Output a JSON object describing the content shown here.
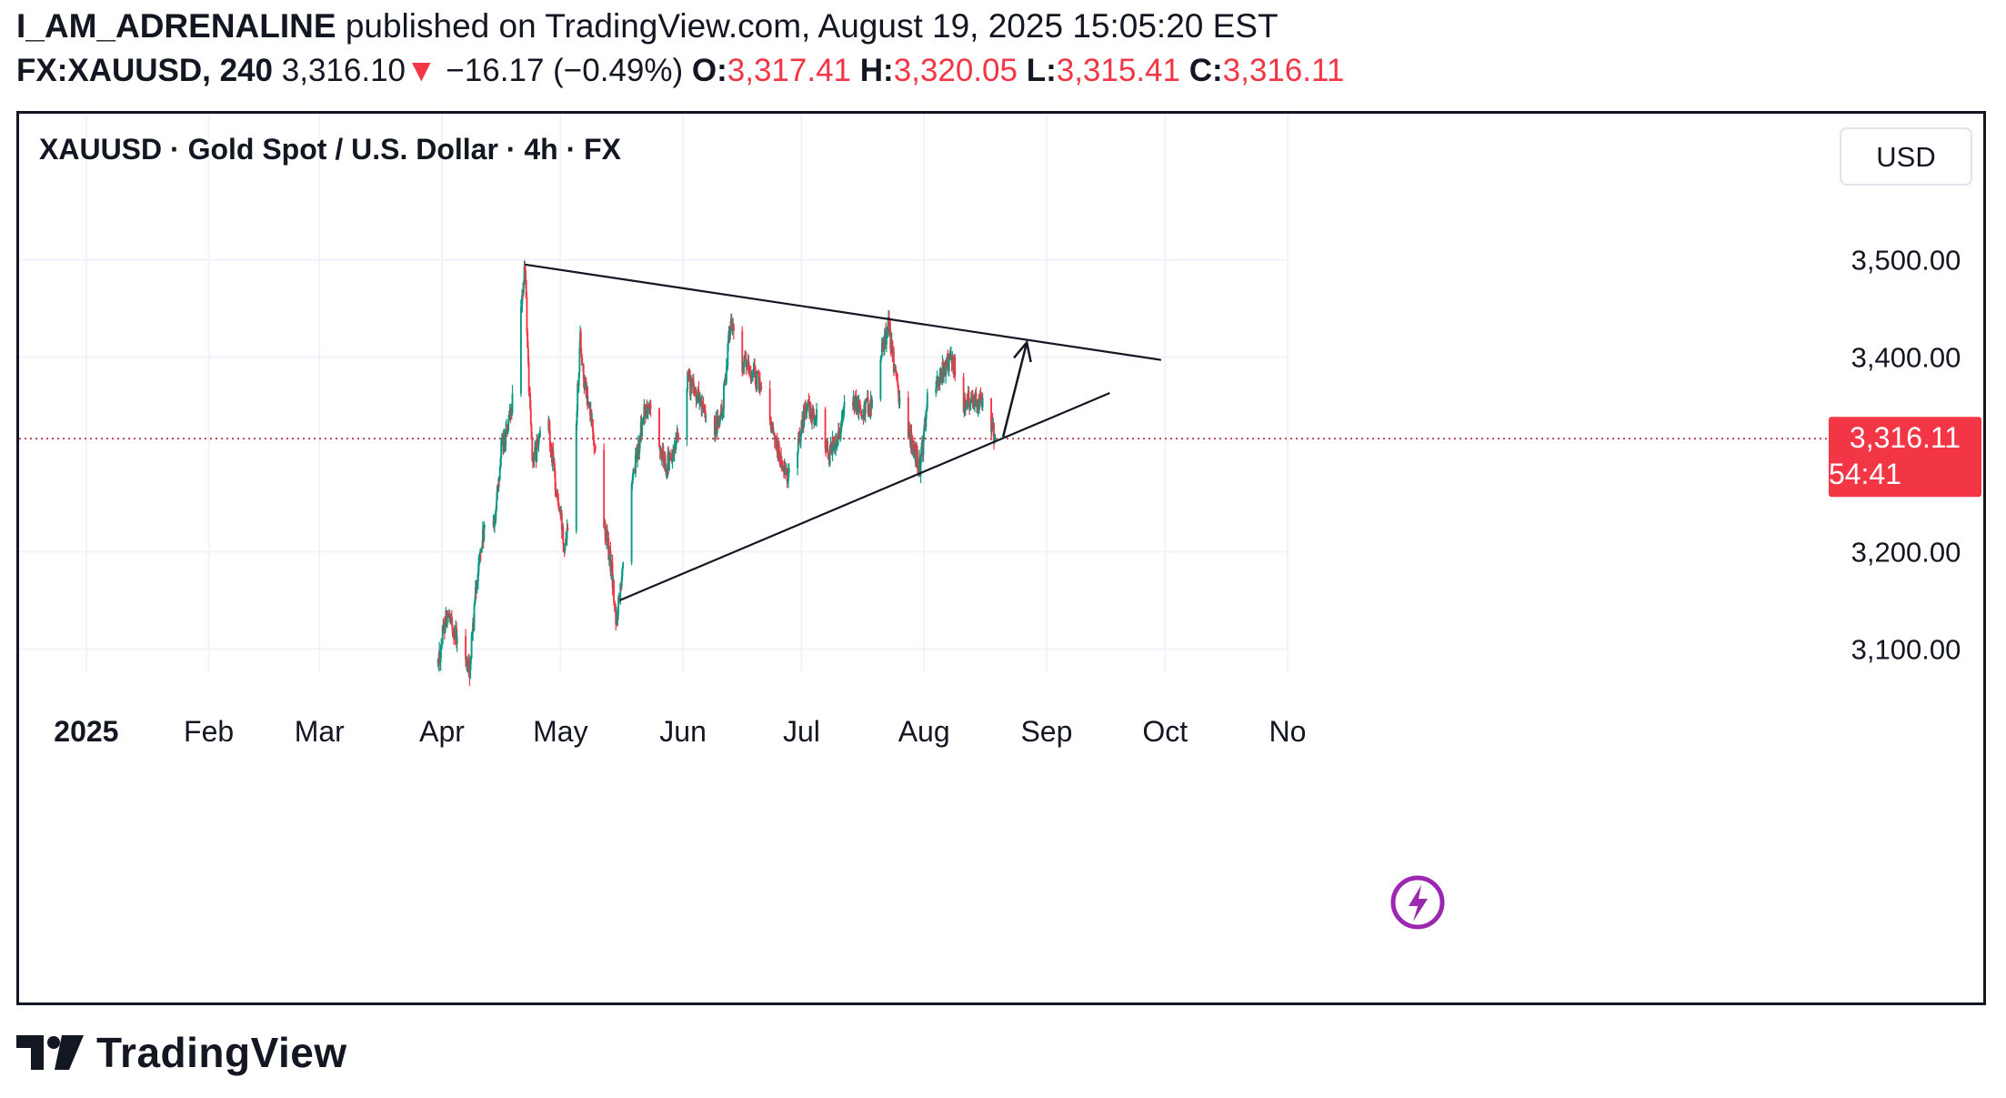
{
  "header": {
    "user": "I_AM_ADRENALINE",
    "published": "published on TradingView.com, August 19, 2025 15:05:20 EST",
    "symbol": "FX:XAUUSD, 240",
    "last": "3,316.10",
    "arrow": "▼",
    "change": "−16.17 (−0.49%)",
    "o_label": "O:",
    "o_value": "3,317.41",
    "h_label": "H:",
    "h_value": "3,320.05",
    "l_label": "L:",
    "l_value": "3,315.41",
    "c_label": "C:",
    "c_value": "3,316.11"
  },
  "brand": {
    "name": "TradingView"
  },
  "chart_data": {
    "type": "candlestick",
    "title": "XAUUSD · Gold Spot / U.S. Dollar · 4h · FX",
    "currency": "USD",
    "y_ticks": [
      "3,500.00",
      "3,400.00",
      "3,200.00",
      "3,100.00"
    ],
    "y_tick_values": [
      3500,
      3400,
      3200,
      3100
    ],
    "ylim": [
      3077,
      3650
    ],
    "x_ticks": [
      "2025",
      "Feb",
      "Mar",
      "Apr",
      "May",
      "Jun",
      "Jul",
      "Aug",
      "Sep",
      "Oct",
      "No"
    ],
    "x_tick_dates": [
      "2025-01-01",
      "2025-02-01",
      "2025-03-01",
      "2025-04-01",
      "2025-05-01",
      "2025-06-01",
      "2025-07-01",
      "2025-08-01",
      "2025-09-01",
      "2025-10-01",
      "2025-11-01"
    ],
    "xlim": [
      "2024-12-15",
      "2025-11-01"
    ],
    "grid": true,
    "last_price_label": "3,316.11",
    "countdown": "54:41",
    "price_path": [
      {
        "date": "2025-03-31",
        "price": 3085
      },
      {
        "date": "2025-04-02",
        "price": 3135
      },
      {
        "date": "2025-04-04",
        "price": 3120
      },
      {
        "date": "2025-04-06",
        "price": 3092
      },
      {
        "date": "2025-04-08",
        "price": 3078
      },
      {
        "date": "2025-04-10",
        "price": 3180
      },
      {
        "date": "2025-04-12",
        "price": 3230
      },
      {
        "date": "2025-04-14",
        "price": 3220
      },
      {
        "date": "2025-04-16",
        "price": 3305
      },
      {
        "date": "2025-04-18",
        "price": 3330
      },
      {
        "date": "2025-04-20",
        "price": 3390
      },
      {
        "date": "2025-04-22",
        "price": 3495
      },
      {
        "date": "2025-04-23",
        "price": 3370
      },
      {
        "date": "2025-04-24",
        "price": 3290
      },
      {
        "date": "2025-04-26",
        "price": 3320
      },
      {
        "date": "2025-04-28",
        "price": 3330
      },
      {
        "date": "2025-04-30",
        "price": 3260
      },
      {
        "date": "2025-05-02",
        "price": 3210
      },
      {
        "date": "2025-05-04",
        "price": 3260
      },
      {
        "date": "2025-05-06",
        "price": 3420
      },
      {
        "date": "2025-05-07",
        "price": 3375
      },
      {
        "date": "2025-05-09",
        "price": 3330
      },
      {
        "date": "2025-05-12",
        "price": 3230
      },
      {
        "date": "2025-05-14",
        "price": 3180
      },
      {
        "date": "2025-05-15",
        "price": 3125
      },
      {
        "date": "2025-05-17",
        "price": 3200
      },
      {
        "date": "2025-05-20",
        "price": 3290
      },
      {
        "date": "2025-05-22",
        "price": 3340
      },
      {
        "date": "2025-05-24",
        "price": 3350
      },
      {
        "date": "2025-05-26",
        "price": 3305
      },
      {
        "date": "2025-05-28",
        "price": 3290
      },
      {
        "date": "2025-05-30",
        "price": 3300
      },
      {
        "date": "2025-06-02",
        "price": 3375
      },
      {
        "date": "2025-06-05",
        "price": 3360
      },
      {
        "date": "2025-06-08",
        "price": 3310
      },
      {
        "date": "2025-06-11",
        "price": 3345
      },
      {
        "date": "2025-06-13",
        "price": 3440
      },
      {
        "date": "2025-06-15",
        "price": 3400
      },
      {
        "date": "2025-06-18",
        "price": 3385
      },
      {
        "date": "2025-06-21",
        "price": 3370
      },
      {
        "date": "2025-06-24",
        "price": 3320
      },
      {
        "date": "2025-06-27",
        "price": 3275
      },
      {
        "date": "2025-06-29",
        "price": 3290
      },
      {
        "date": "2025-07-02",
        "price": 3350
      },
      {
        "date": "2025-07-05",
        "price": 3335
      },
      {
        "date": "2025-07-08",
        "price": 3300
      },
      {
        "date": "2025-07-10",
        "price": 3320
      },
      {
        "date": "2025-07-13",
        "price": 3360
      },
      {
        "date": "2025-07-16",
        "price": 3345
      },
      {
        "date": "2025-07-19",
        "price": 3355
      },
      {
        "date": "2025-07-21",
        "price": 3400
      },
      {
        "date": "2025-07-23",
        "price": 3435
      },
      {
        "date": "2025-07-25",
        "price": 3370
      },
      {
        "date": "2025-07-27",
        "price": 3340
      },
      {
        "date": "2025-07-29",
        "price": 3310
      },
      {
        "date": "2025-07-31",
        "price": 3285
      },
      {
        "date": "2025-08-02",
        "price": 3360
      },
      {
        "date": "2025-08-05",
        "price": 3380
      },
      {
        "date": "2025-08-08",
        "price": 3400
      },
      {
        "date": "2025-08-11",
        "price": 3350
      },
      {
        "date": "2025-08-14",
        "price": 3360
      },
      {
        "date": "2025-08-17",
        "price": 3340
      },
      {
        "date": "2025-08-19",
        "price": 3316
      }
    ],
    "annotations": [
      {
        "type": "trendline",
        "name": "upper",
        "from": {
          "date": "2025-04-22",
          "price": 3495
        },
        "to": {
          "date": "2025-09-30",
          "price": 3397
        }
      },
      {
        "type": "trendline",
        "name": "lower",
        "from": {
          "date": "2025-05-16",
          "price": 3150
        },
        "to": {
          "date": "2025-09-17",
          "price": 3363
        }
      },
      {
        "type": "arrow",
        "from": {
          "date": "2025-08-21",
          "price": 3318
        },
        "to": {
          "date": "2025-08-27",
          "price": 3415
        }
      }
    ],
    "colors": {
      "up": "#089981",
      "down": "#f23645",
      "price_line": "#b22833",
      "grid": "#f0f3fa",
      "text": "#131722",
      "lightning": "#9c27b0"
    }
  }
}
